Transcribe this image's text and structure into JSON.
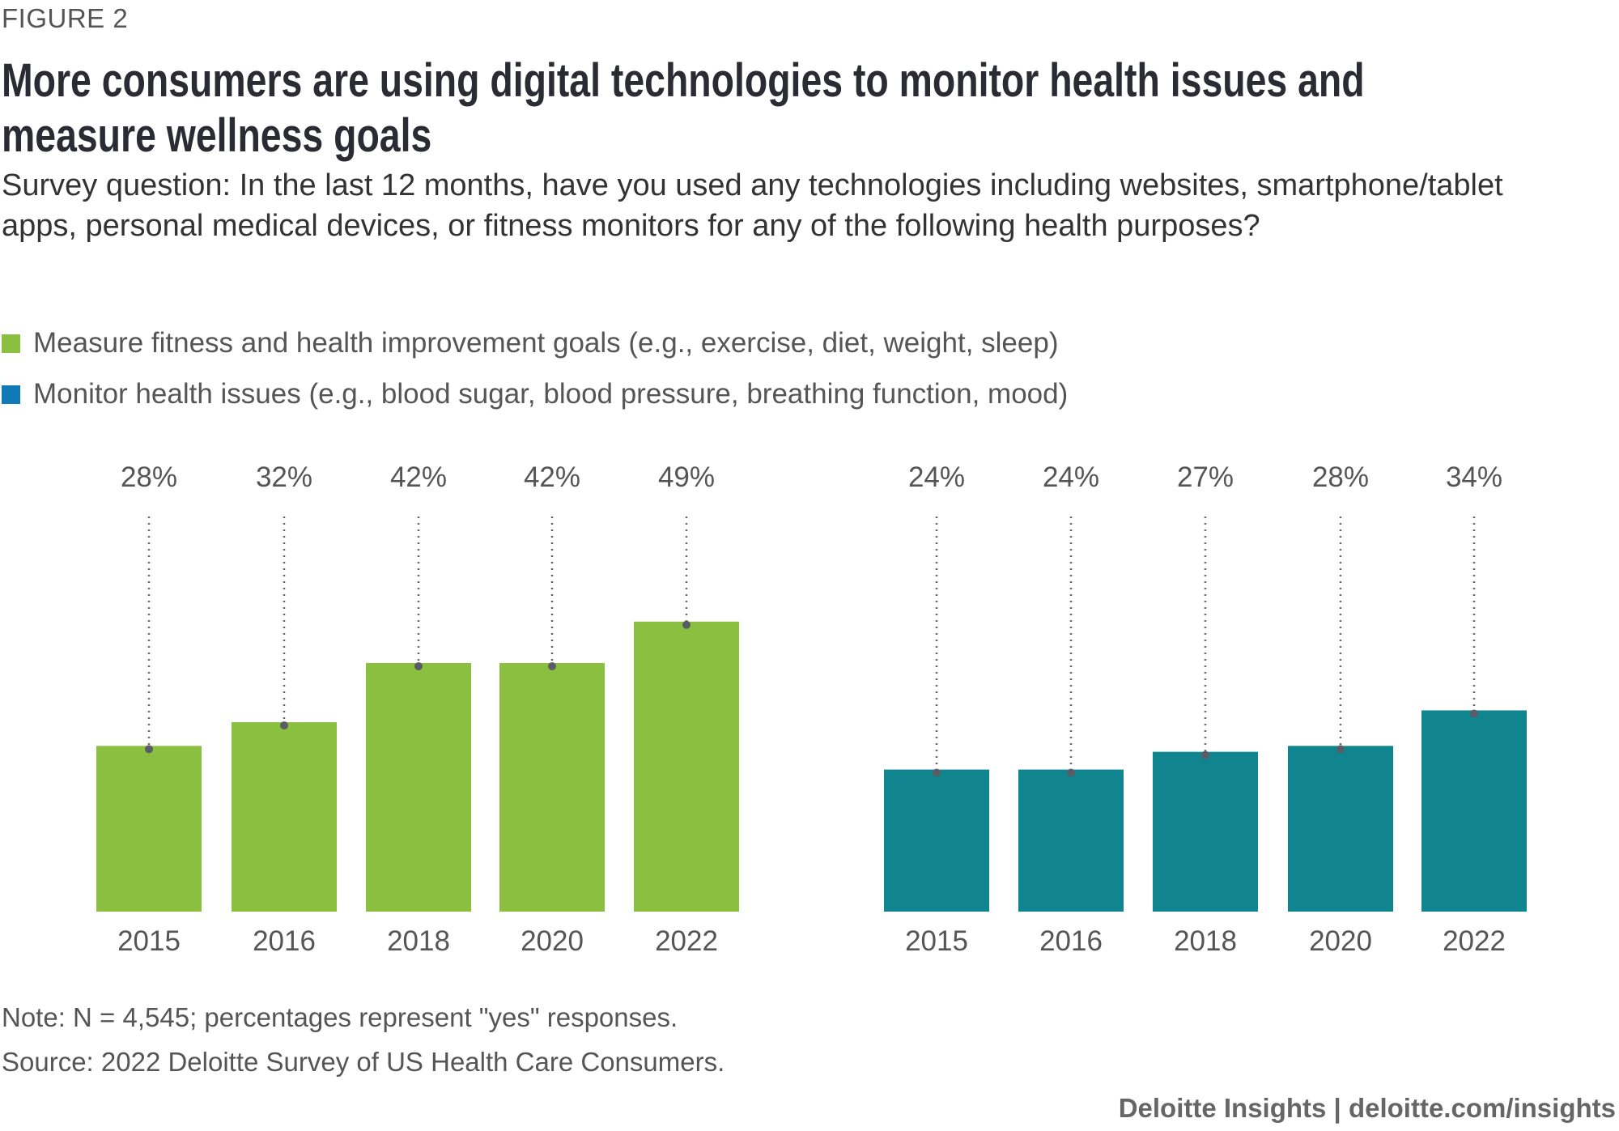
{
  "figure_label": "FIGURE 2",
  "title": "More consumers are using digital technologies to monitor health issues and measure wellness goals",
  "subtitle": "Survey question: In the last 12 months, have you used any technologies including websites, smartphone/tablet apps, personal medical devices, or fitness monitors for any of the following health purposes?",
  "note": "Note: N = 4,545; percentages represent \"yes\" responses.",
  "source": "Source: 2022 Deloitte Survey of US Health Care Consumers.",
  "footer": "Deloitte Insights | deloitte.com/insights",
  "chart_data": {
    "type": "bar",
    "categories": [
      "2015",
      "2016",
      "2018",
      "2020",
      "2022"
    ],
    "series": [
      {
        "name": "Measure fitness and health improvement goals (e.g., exercise, diet, weight, sleep)",
        "values": [
          28,
          32,
          42,
          42,
          49
        ],
        "labels": [
          "28%",
          "32%",
          "42%",
          "42%",
          "49%"
        ],
        "color": "#8abf3f",
        "legend_color": "#8abf3f"
      },
      {
        "name": "Monitor health issues (e.g., blood sugar, blood pressure, breathing function, mood)",
        "values": [
          24,
          24,
          27,
          28,
          34
        ],
        "labels": [
          "24%",
          "24%",
          "27%",
          "28%",
          "34%"
        ],
        "color": "#11858f",
        "legend_color": "#0f7ab5"
      }
    ],
    "ylabel": "",
    "xlabel": "",
    "ylim": [
      0,
      100
    ],
    "grid": false,
    "legend_placement": "top-left"
  }
}
